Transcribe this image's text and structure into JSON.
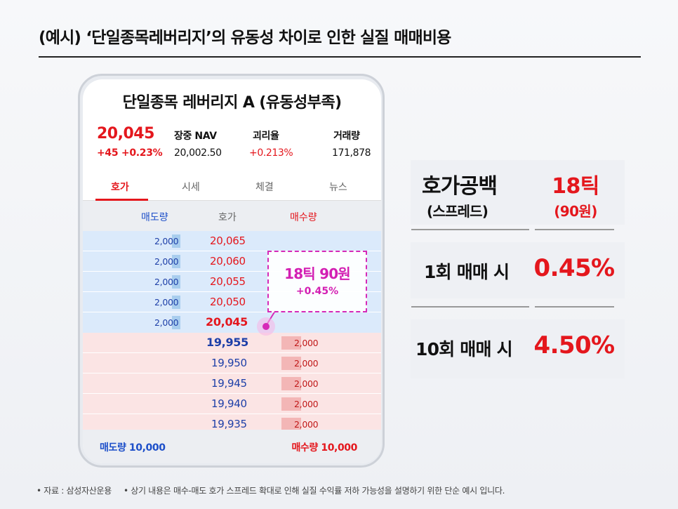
{
  "headline": "(예시) ‘단일종목레버리지’의 유동성 차이로 인한 실질 매매비용",
  "app": {
    "stock_title": "단일종목 레버리지 A (유동성부족)",
    "price": "20,045",
    "price_change": "+45 +0.23%",
    "stats": [
      {
        "label": "장중 NAV",
        "value": "20,002.50",
        "red": false
      },
      {
        "label": "괴리율",
        "value": "+0.213%",
        "red": true
      },
      {
        "label": "거래량",
        "value": "171,878",
        "red": false
      }
    ],
    "tabs": [
      "호가",
      "시세",
      "체결",
      "뉴스"
    ],
    "active_tab": "호가",
    "columns": [
      "매도량",
      "호가",
      "매수량"
    ],
    "ask_rows": [
      {
        "qty": "2,000",
        "price": "20,065"
      },
      {
        "qty": "2,000",
        "price": "20,060"
      },
      {
        "qty": "2,000",
        "price": "20,055"
      },
      {
        "qty": "2,000",
        "price": "20,050"
      },
      {
        "qty": "2,000",
        "price": "20,045"
      }
    ],
    "bid_rows": [
      {
        "price": "19,955",
        "qty": "2,000"
      },
      {
        "price": "19,950",
        "qty": "2,000"
      },
      {
        "price": "19,945",
        "qty": "2,000"
      },
      {
        "price": "19,940",
        "qty": "2,000"
      },
      {
        "price": "19,935",
        "qty": "2,000"
      }
    ],
    "total_sell": "매도량 10,000",
    "total_buy": "매수량 10,000"
  },
  "callout": {
    "main": "18틱 90원",
    "sub": "+0.45%"
  },
  "panel": {
    "spread_label_1": "호가공백",
    "spread_label_2": "(스프레드)",
    "spread_value_1": "18틱",
    "spread_value_2": "(90원)",
    "one_trade_label": "1회 매매 시",
    "one_trade_value": "0.45%",
    "ten_trade_label": "10회 매매 시",
    "ten_trade_value": "4.50%"
  },
  "footnote": {
    "source": "• 자료 : 삼성자산운용",
    "note": "• 상기 내용은 매수-매도 호가 스프레드 확대로 인해 실질 수익률 저하 가능성을 설명하기 위한 단순 예시 입니다."
  },
  "colors": {
    "accent_red": "#e4171d",
    "accent_blue": "#1d4fc9",
    "magenta": "#d31fb3",
    "ask_bg": "#dbeafb",
    "bid_bg": "#fbe4e4"
  }
}
